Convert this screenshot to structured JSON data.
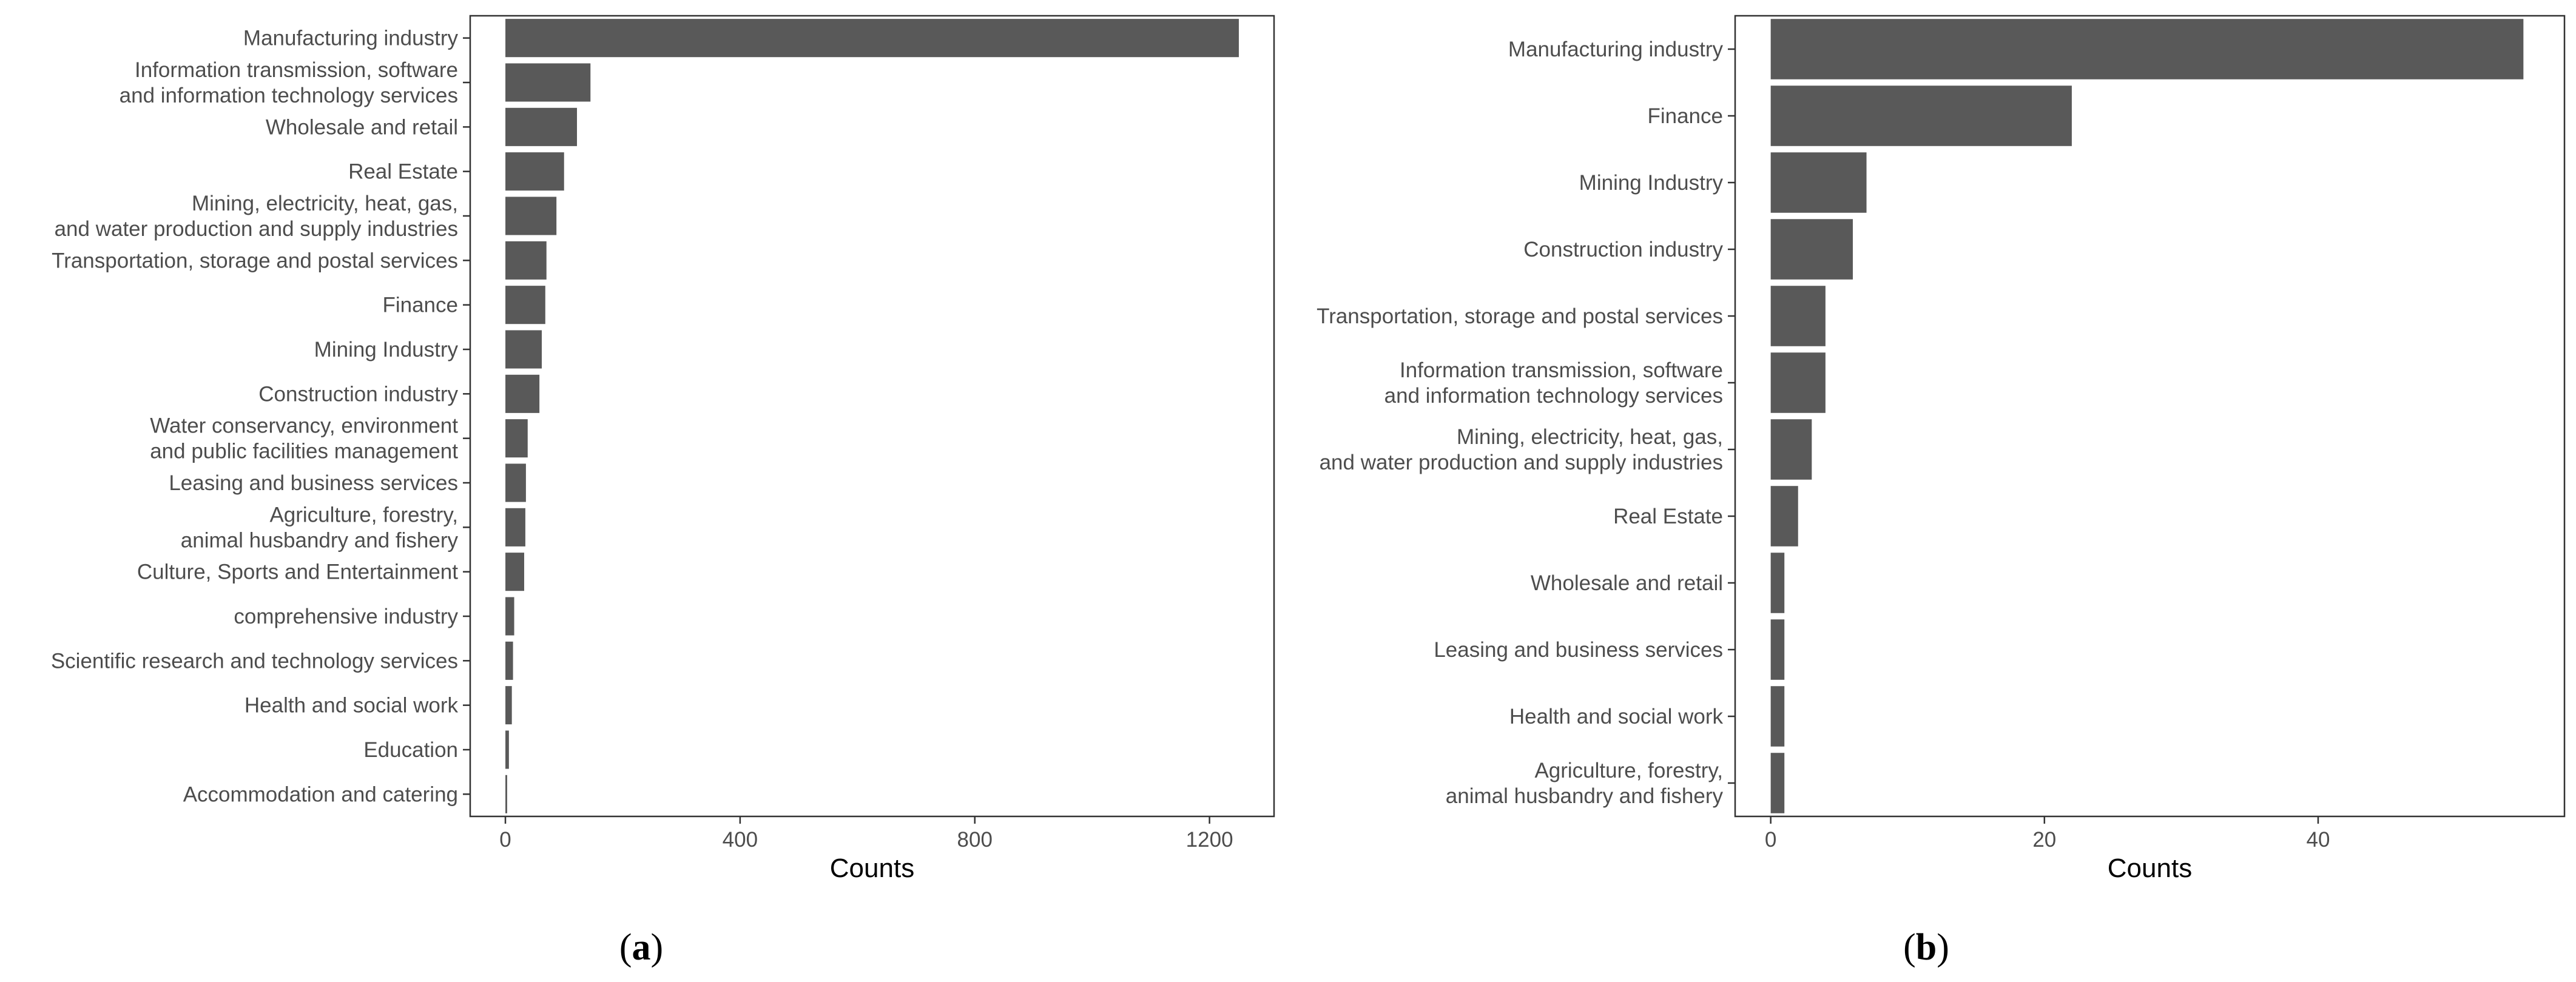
{
  "colors": {
    "bar": "#595959",
    "panel_border": "#333333",
    "tick": "#333333",
    "text": "#4d4d4d"
  },
  "chart_data": [
    {
      "type": "bar",
      "orientation": "horizontal",
      "caption_letter": "a",
      "xlabel": "Counts",
      "ylabel": "",
      "title": "",
      "xlim": [
        -60,
        1310
      ],
      "xticks": [
        0,
        400,
        800,
        1200
      ],
      "grid": false,
      "categories": [
        [
          "Manufacturing industry"
        ],
        [
          "Information transmission, software",
          "and information technology services"
        ],
        [
          "Wholesale and retail"
        ],
        [
          "Real Estate"
        ],
        [
          "Mining, electricity, heat, gas,",
          "and water production and supply industries"
        ],
        [
          "Transportation, storage and postal services"
        ],
        [
          "Finance"
        ],
        [
          "Mining Industry"
        ],
        [
          "Construction industry"
        ],
        [
          "Water conservancy, environment",
          "and public facilities management"
        ],
        [
          "Leasing and business services"
        ],
        [
          "Agriculture, forestry,",
          "animal husbandry and fishery"
        ],
        [
          "Culture, Sports and Entertainment"
        ],
        [
          "comprehensive industry"
        ],
        [
          "Scientific research and technology services"
        ],
        [
          "Health and social work"
        ],
        [
          "Education"
        ],
        [
          "Accommodation and catering"
        ]
      ],
      "values": [
        1250,
        145,
        122,
        100,
        87,
        70,
        68,
        62,
        58,
        38,
        35,
        34,
        32,
        15,
        13,
        11,
        6,
        3
      ]
    },
    {
      "type": "bar",
      "orientation": "horizontal",
      "caption_letter": "b",
      "xlabel": "Counts",
      "ylabel": "",
      "title": "",
      "xlim": [
        -2.6,
        58
      ],
      "xticks": [
        0,
        20,
        40
      ],
      "grid": false,
      "categories": [
        [
          "Manufacturing industry"
        ],
        [
          "Finance"
        ],
        [
          "Mining Industry"
        ],
        [
          "Construction industry"
        ],
        [
          "Transportation, storage and postal services"
        ],
        [
          "Information transmission, software",
          "and information technology services"
        ],
        [
          "Mining, electricity, heat, gas,",
          "and water production and supply industries"
        ],
        [
          "Real Estate"
        ],
        [
          "Wholesale and retail"
        ],
        [
          "Leasing and business services"
        ],
        [
          "Health and social work"
        ],
        [
          "Agriculture, forestry,",
          "animal husbandry and fishery"
        ]
      ],
      "values": [
        55,
        22,
        7,
        6,
        4,
        4,
        3,
        2,
        1,
        1,
        1,
        1
      ]
    }
  ]
}
